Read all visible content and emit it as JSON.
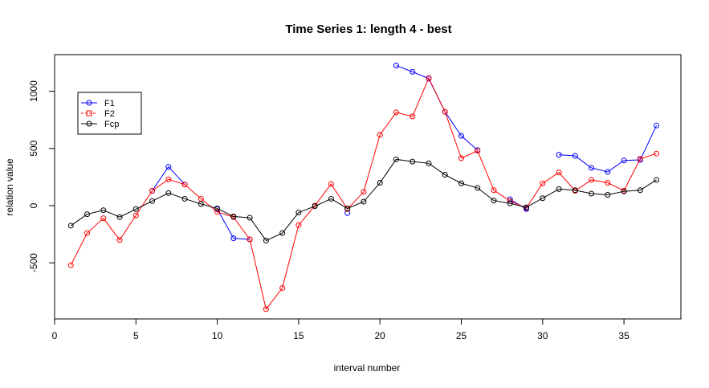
{
  "chart_data": {
    "type": "line",
    "title": "Time Series 1: length 4 - best",
    "xlabel": "interval number",
    "ylabel": "relation value",
    "xlim": [
      0,
      38.5
    ],
    "ylim": [
      -990,
      1320
    ],
    "xticks": [
      0,
      5,
      10,
      15,
      20,
      25,
      30,
      35
    ],
    "yticks": [
      -500,
      0,
      500,
      1000
    ],
    "grid": false,
    "legend_position": "top-left",
    "x": [
      1,
      2,
      3,
      4,
      5,
      6,
      7,
      8,
      9,
      10,
      11,
      12,
      13,
      14,
      15,
      16,
      17,
      18,
      19,
      20,
      21,
      22,
      23,
      24,
      25,
      26,
      27,
      28,
      29,
      30,
      31,
      32,
      33,
      34,
      35,
      36,
      37
    ],
    "series": [
      {
        "name": "F1",
        "color": "#0000ff",
        "values": [
          null,
          null,
          null,
          null,
          null,
          130,
          340,
          185,
          null,
          -30,
          -285,
          -295,
          null,
          null,
          null,
          null,
          null,
          -65,
          null,
          null,
          1225,
          1170,
          1110,
          820,
          610,
          485,
          null,
          55,
          -30,
          null,
          445,
          435,
          330,
          295,
          395,
          400,
          700
        ]
      },
      {
        "name": "F2",
        "color": "#ff0000",
        "values": [
          -520,
          -240,
          -110,
          -300,
          -85,
          130,
          230,
          185,
          60,
          -55,
          -100,
          -295,
          -905,
          -720,
          -170,
          0,
          190,
          -30,
          120,
          620,
          815,
          780,
          1115,
          820,
          415,
          480,
          135,
          40,
          -20,
          195,
          290,
          130,
          225,
          200,
          130,
          410,
          455
        ]
      },
      {
        "name": "Fcp",
        "color": "#000000",
        "values": [
          -175,
          -75,
          -40,
          -100,
          -30,
          40,
          110,
          60,
          15,
          -25,
          -95,
          -105,
          -305,
          -240,
          -60,
          -5,
          60,
          -25,
          35,
          200,
          405,
          385,
          370,
          270,
          195,
          155,
          45,
          20,
          -15,
          65,
          145,
          135,
          105,
          95,
          125,
          135,
          225
        ]
      }
    ]
  }
}
